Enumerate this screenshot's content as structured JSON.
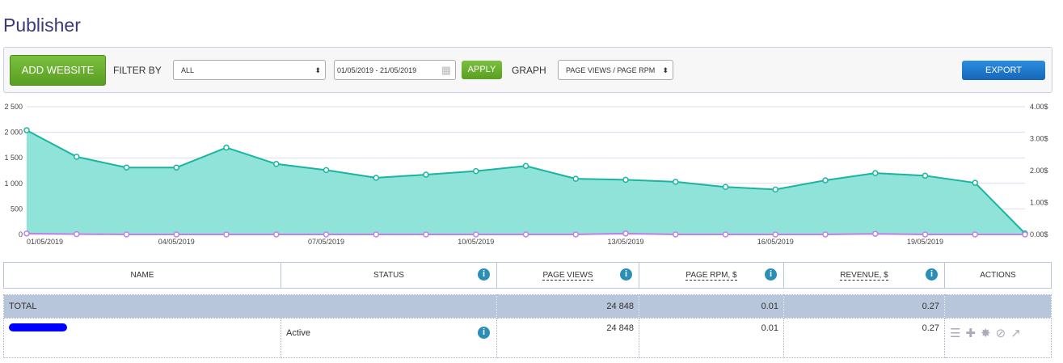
{
  "page_title": "Publisher",
  "toolbar": {
    "add_website": "ADD WEBSITE",
    "filter_by": "FILTER BY",
    "filter_value": "ALL",
    "date_range": "01/05/2019 - 21/05/2019",
    "apply": "APPLY",
    "graph": "GRAPH",
    "graph_value": "PAGE VIEWS / PAGE RPM",
    "export": "EXPORT"
  },
  "chart_data": {
    "type": "area",
    "x": [
      "01/05/2019",
      "02/05/2019",
      "03/05/2019",
      "04/05/2019",
      "05/05/2019",
      "06/05/2019",
      "07/05/2019",
      "08/05/2019",
      "09/05/2019",
      "10/05/2019",
      "11/05/2019",
      "12/05/2019",
      "13/05/2019",
      "14/05/2019",
      "15/05/2019",
      "16/05/2019",
      "17/05/2019",
      "18/05/2019",
      "19/05/2019",
      "20/05/2019",
      "21/05/2019"
    ],
    "x_tick_labels": [
      "01/05/2019",
      "04/05/2019",
      "07/05/2019",
      "10/05/2019",
      "13/05/2019",
      "16/05/2019",
      "19/05/2019"
    ],
    "y_ticks": [
      "0",
      "500",
      "1 000",
      "1 500",
      "2 000",
      "2 500"
    ],
    "y2_ticks": [
      "0.00$",
      "1.00$",
      "2.00$",
      "3.00$",
      "4.00$"
    ],
    "ylim": [
      0,
      2500
    ],
    "y2lim": [
      0,
      4
    ],
    "series": [
      {
        "name": "Page Views",
        "color": "#1ab5a0",
        "values": [
          2040,
          1520,
          1310,
          1310,
          1700,
          1380,
          1260,
          1110,
          1170,
          1240,
          1340,
          1090,
          1070,
          1030,
          930,
          880,
          1060,
          1200,
          1150,
          1010,
          20
        ]
      },
      {
        "name": "Page RPM",
        "color": "#c080e8",
        "values": [
          0.03,
          0.01,
          0.0,
          0.0,
          0.0,
          0.0,
          0.0,
          0.0,
          0.0,
          0.0,
          0.0,
          0.0,
          0.03,
          0.0,
          0.0,
          0.0,
          0.0,
          0.02,
          0.0,
          0.0,
          0.0
        ]
      }
    ]
  },
  "table": {
    "headers": [
      "NAME",
      "STATUS",
      "PAGE VIEWS",
      "PAGE RPM, $",
      "REVENUE, $",
      "ACTIONS"
    ],
    "total": {
      "label": "TOTAL",
      "page_views": "24 848",
      "page_rpm": "0.01",
      "revenue": "0.27"
    },
    "rows": [
      {
        "name": "",
        "status": "Active",
        "page_views": "24 848",
        "page_rpm": "0.01",
        "revenue": "0.27"
      }
    ]
  }
}
